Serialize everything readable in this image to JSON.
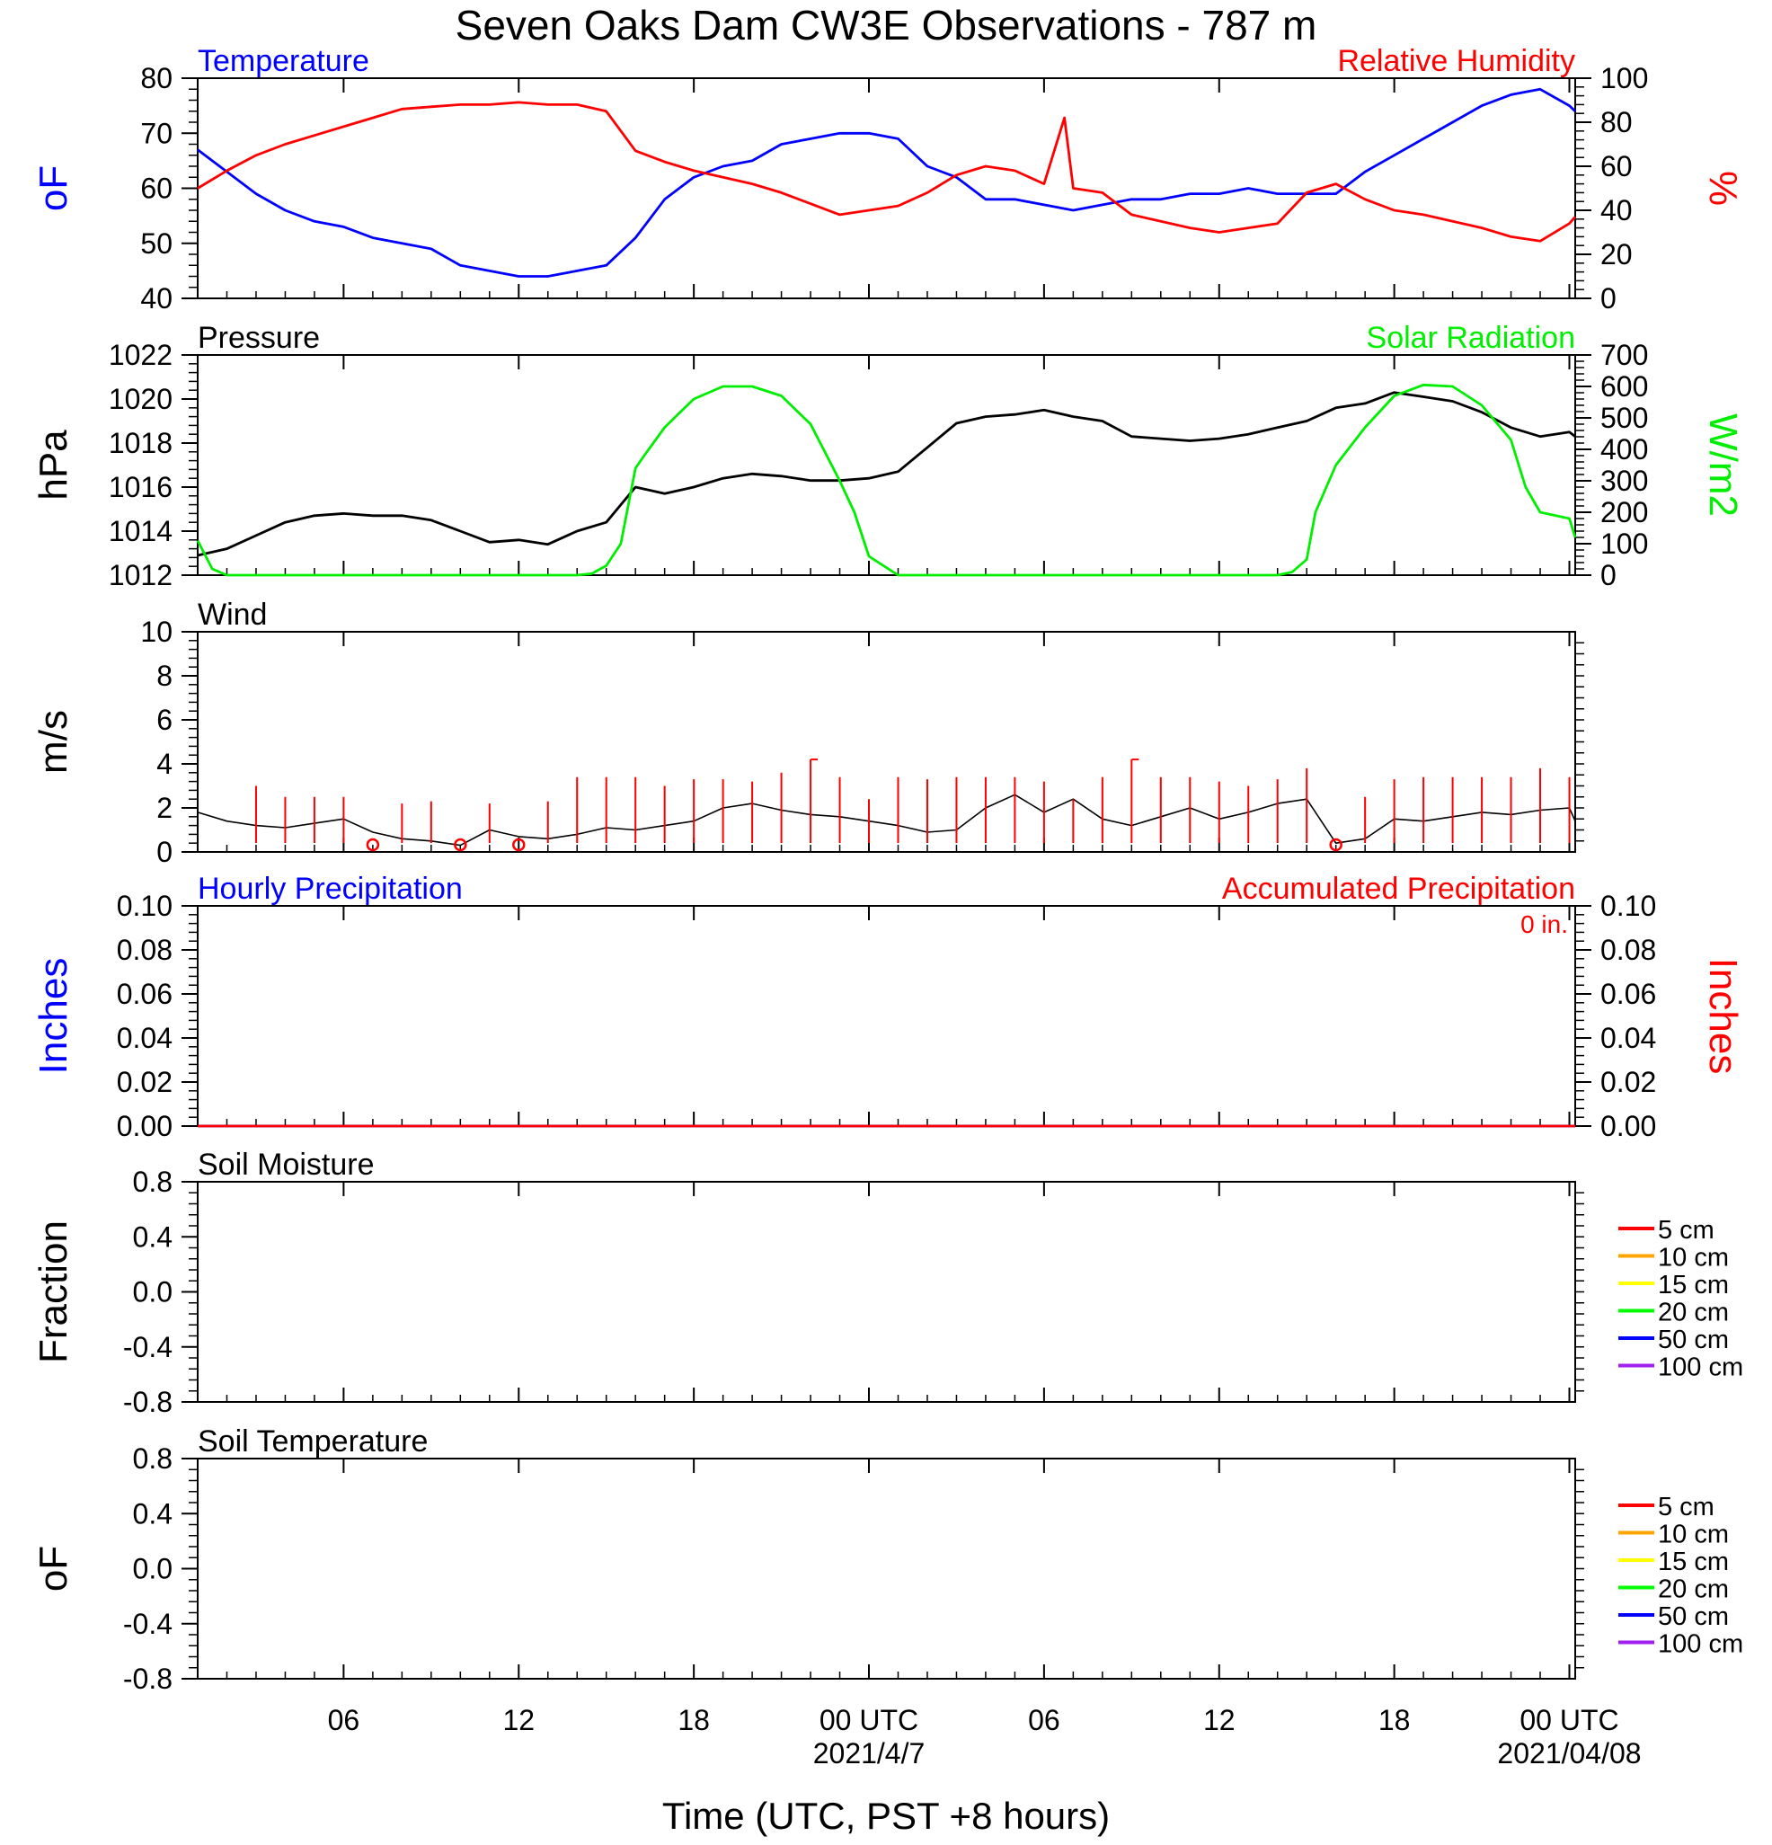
{
  "title": "Seven Oaks Dam CW3E Observations - 787 m",
  "xlabel": "Time (UTC, PST +8 hours)",
  "x_ticks": [
    {
      "hour": 6,
      "label": "06",
      "date": ""
    },
    {
      "hour": 12,
      "label": "12",
      "date": ""
    },
    {
      "hour": 18,
      "label": "18",
      "date": ""
    },
    {
      "hour": 24,
      "label": "00 UTC",
      "date": "2021/4/7"
    },
    {
      "hour": 30,
      "label": "06",
      "date": ""
    },
    {
      "hour": 36,
      "label": "12",
      "date": ""
    },
    {
      "hour": 42,
      "label": "18",
      "date": ""
    },
    {
      "hour": 48,
      "label": "00 UTC",
      "date": "2021/04/08"
    }
  ],
  "x_range_hours": [
    1,
    48.2
  ],
  "colors": {
    "temperature": "#0000ff",
    "humidity": "#ff0000",
    "pressure": "#000000",
    "solar": "#00ee00",
    "wind": "#000000",
    "barb": "#ff0000",
    "hourly": "#0000ff",
    "accum": "#ff0000"
  },
  "chart_data": [
    {
      "type": "line",
      "panel": "temperature-humidity",
      "left_title": "Temperature",
      "right_title": "Relative Humidity",
      "ylabel": "oF",
      "ylabel_right": "%",
      "ylim": [
        40,
        80
      ],
      "yticks": [
        "40",
        "50",
        "60",
        "70",
        "80"
      ],
      "ylim_right": [
        0,
        100
      ],
      "yticks_right": [
        "0",
        "20",
        "40",
        "60",
        "80",
        "100"
      ],
      "series": [
        {
          "name": "Temperature",
          "axis": "left",
          "x": [
            1,
            2,
            3,
            4,
            5,
            6,
            7,
            8,
            9,
            10,
            11,
            12,
            13,
            14,
            15,
            16,
            17,
            18,
            19,
            20,
            21,
            22,
            23,
            24,
            25,
            26,
            27,
            28,
            29,
            30,
            31,
            32,
            33,
            34,
            35,
            36,
            37,
            38,
            39,
            40,
            41,
            42,
            43,
            44,
            45,
            46,
            47,
            48,
            48.2
          ],
          "y": [
            67,
            63,
            59,
            56,
            54,
            53,
            51,
            50,
            49,
            46,
            45,
            44,
            44,
            45,
            46,
            51,
            58,
            62,
            64,
            65,
            68,
            69,
            70,
            70,
            69,
            64,
            62,
            58,
            58,
            57,
            56,
            57,
            58,
            58,
            59,
            59,
            60,
            59,
            59,
            59,
            63,
            66,
            69,
            72,
            75,
            77,
            78,
            75,
            74
          ]
        },
        {
          "name": "Relative Humidity",
          "axis": "right",
          "x": [
            1,
            2,
            3,
            4,
            5,
            6,
            7,
            8,
            9,
            10,
            11,
            12,
            13,
            14,
            15,
            16,
            17,
            18,
            19,
            20,
            21,
            22,
            23,
            24,
            25,
            26,
            27,
            28,
            29,
            30,
            30.7,
            31,
            32,
            33,
            34,
            35,
            36,
            37,
            38,
            39,
            40,
            41,
            42,
            43,
            44,
            45,
            46,
            47,
            48,
            48.2
          ],
          "y": [
            50,
            58,
            65,
            70,
            74,
            78,
            82,
            86,
            87,
            88,
            88,
            89,
            88,
            88,
            85,
            67,
            62,
            58,
            55,
            52,
            48,
            43,
            38,
            40,
            42,
            48,
            56,
            60,
            58,
            52,
            82,
            50,
            48,
            38,
            35,
            32,
            30,
            32,
            34,
            48,
            52,
            45,
            40,
            38,
            35,
            32,
            28,
            26,
            34,
            37
          ]
        }
      ]
    },
    {
      "type": "line",
      "panel": "pressure-solar",
      "left_title": "Pressure",
      "right_title": "Solar Radiation",
      "ylabel": "hPa",
      "ylabel_right": "W/m2",
      "ylim": [
        1012,
        1022
      ],
      "yticks": [
        "1012",
        "1014",
        "1016",
        "1018",
        "1020",
        "1022"
      ],
      "ylim_right": [
        0,
        700
      ],
      "yticks_right": [
        "0",
        "100",
        "200",
        "300",
        "400",
        "500",
        "600",
        "700"
      ],
      "series": [
        {
          "name": "Pressure",
          "axis": "left",
          "x": [
            1,
            2,
            3,
            4,
            5,
            6,
            7,
            8,
            9,
            10,
            11,
            12,
            13,
            14,
            15,
            16,
            17,
            18,
            19,
            20,
            21,
            22,
            23,
            24,
            25,
            26,
            27,
            28,
            29,
            30,
            31,
            32,
            33,
            34,
            35,
            36,
            37,
            38,
            39,
            40,
            41,
            42,
            43,
            44,
            45,
            46,
            47,
            48,
            48.2
          ],
          "y": [
            1012.9,
            1013.2,
            1013.8,
            1014.4,
            1014.7,
            1014.8,
            1014.7,
            1014.7,
            1014.5,
            1014.0,
            1013.5,
            1013.6,
            1013.4,
            1014.0,
            1014.4,
            1016.0,
            1015.7,
            1016.0,
            1016.4,
            1016.6,
            1016.5,
            1016.3,
            1016.3,
            1016.4,
            1016.7,
            1017.8,
            1018.9,
            1019.2,
            1019.3,
            1019.5,
            1019.2,
            1019.0,
            1018.3,
            1018.2,
            1018.1,
            1018.2,
            1018.4,
            1018.7,
            1019.0,
            1019.6,
            1019.8,
            1020.3,
            1020.1,
            1019.9,
            1019.4,
            1018.7,
            1018.3,
            1018.5,
            1018.3
          ]
        },
        {
          "name": "Solar Radiation",
          "axis": "right",
          "x": [
            1,
            1.5,
            2,
            3,
            4,
            5,
            6,
            7,
            8,
            9,
            10,
            11,
            12,
            13,
            14,
            14.5,
            15,
            15.5,
            16,
            16.3,
            17,
            18,
            19,
            20,
            21,
            22,
            23,
            23.5,
            24,
            25,
            26,
            27,
            28,
            29,
            30,
            31,
            32,
            33,
            34,
            35,
            36,
            37,
            38,
            38.5,
            39,
            39.3,
            40,
            41,
            42,
            43,
            44,
            45,
            46,
            46.5,
            47,
            48,
            48.2
          ],
          "y": [
            110,
            20,
            0,
            0,
            0,
            0,
            0,
            0,
            0,
            0,
            0,
            0,
            0,
            0,
            0,
            5,
            30,
            100,
            340,
            380,
            470,
            560,
            600,
            600,
            570,
            480,
            300,
            200,
            60,
            0,
            0,
            0,
            0,
            0,
            0,
            0,
            0,
            0,
            0,
            0,
            0,
            0,
            0,
            10,
            50,
            200,
            350,
            470,
            570,
            605,
            600,
            540,
            430,
            280,
            200,
            180,
            120
          ]
        }
      ]
    },
    {
      "type": "line",
      "panel": "wind",
      "left_title": "Wind",
      "ylabel": "m/s",
      "ylim": [
        0,
        10
      ],
      "yticks": [
        "0",
        "2",
        "4",
        "6",
        "8",
        "10"
      ],
      "series": [
        {
          "name": "Wind speed",
          "x": [
            1,
            2,
            3,
            4,
            5,
            6,
            7,
            8,
            9,
            10,
            11,
            12,
            13,
            14,
            15,
            16,
            17,
            18,
            19,
            20,
            21,
            22,
            23,
            24,
            25,
            26,
            27,
            28,
            29,
            30,
            31,
            32,
            33,
            34,
            35,
            36,
            37,
            38,
            39,
            40,
            41,
            42,
            43,
            44,
            45,
            46,
            47,
            48,
            48.2
          ],
          "y": [
            1.8,
            1.4,
            1.2,
            1.1,
            1.3,
            1.5,
            0.9,
            0.6,
            0.5,
            0.3,
            1.0,
            0.7,
            0.6,
            0.8,
            1.1,
            1.0,
            1.2,
            1.4,
            2.0,
            2.2,
            1.9,
            1.7,
            1.6,
            1.4,
            1.2,
            0.9,
            1.0,
            2.0,
            2.6,
            1.8,
            2.4,
            1.5,
            1.2,
            1.6,
            2.0,
            1.5,
            1.8,
            2.2,
            2.4,
            0.4,
            0.6,
            1.5,
            1.4,
            1.6,
            1.8,
            1.7,
            1.9,
            2.0,
            1.4
          ]
        }
      ],
      "barbs": [
        {
          "hour": 3,
          "speed": 3.0,
          "calm": false
        },
        {
          "hour": 4,
          "speed": 2.5,
          "calm": false
        },
        {
          "hour": 5,
          "speed": 2.5,
          "calm": false
        },
        {
          "hour": 6,
          "speed": 2.5,
          "calm": false
        },
        {
          "hour": 7,
          "speed": 0.5,
          "calm": true
        },
        {
          "hour": 8,
          "speed": 2.2,
          "calm": false
        },
        {
          "hour": 9,
          "speed": 2.3,
          "calm": false
        },
        {
          "hour": 10,
          "speed": 0.3,
          "calm": true
        },
        {
          "hour": 11,
          "speed": 2.2,
          "calm": false
        },
        {
          "hour": 12,
          "speed": 0.6,
          "calm": true
        },
        {
          "hour": 13,
          "speed": 2.3,
          "calm": false
        },
        {
          "hour": 14,
          "speed": 3.4,
          "calm": false
        },
        {
          "hour": 15,
          "speed": 3.4,
          "calm": false
        },
        {
          "hour": 16,
          "speed": 3.4,
          "calm": false
        },
        {
          "hour": 17,
          "speed": 3.0,
          "calm": false
        },
        {
          "hour": 18,
          "speed": 3.3,
          "calm": false
        },
        {
          "hour": 19,
          "speed": 3.3,
          "calm": false
        },
        {
          "hour": 20,
          "speed": 3.2,
          "calm": false
        },
        {
          "hour": 21,
          "speed": 3.6,
          "calm": false
        },
        {
          "hour": 22,
          "speed": 4.2,
          "calm": false
        },
        {
          "hour": 23,
          "speed": 3.4,
          "calm": false
        },
        {
          "hour": 24,
          "speed": 2.4,
          "calm": false
        },
        {
          "hour": 25,
          "speed": 3.4,
          "calm": false
        },
        {
          "hour": 26,
          "speed": 3.3,
          "calm": false
        },
        {
          "hour": 27,
          "speed": 3.4,
          "calm": false
        },
        {
          "hour": 28,
          "speed": 3.4,
          "calm": false
        },
        {
          "hour": 29,
          "speed": 3.4,
          "calm": false
        },
        {
          "hour": 30,
          "speed": 3.2,
          "calm": false
        },
        {
          "hour": 31,
          "speed": 2.4,
          "calm": false
        },
        {
          "hour": 32,
          "speed": 3.4,
          "calm": false
        },
        {
          "hour": 33,
          "speed": 4.2,
          "calm": false
        },
        {
          "hour": 34,
          "speed": 3.4,
          "calm": false
        },
        {
          "hour": 35,
          "speed": 3.4,
          "calm": false
        },
        {
          "hour": 36,
          "speed": 3.2,
          "calm": false
        },
        {
          "hour": 37,
          "speed": 3.0,
          "calm": false
        },
        {
          "hour": 38,
          "speed": 3.3,
          "calm": false
        },
        {
          "hour": 39,
          "speed": 3.8,
          "calm": false
        },
        {
          "hour": 40,
          "speed": 0.3,
          "calm": true
        },
        {
          "hour": 41,
          "speed": 2.5,
          "calm": false
        },
        {
          "hour": 42,
          "speed": 3.3,
          "calm": false
        },
        {
          "hour": 43,
          "speed": 3.4,
          "calm": false
        },
        {
          "hour": 44,
          "speed": 3.4,
          "calm": false
        },
        {
          "hour": 45,
          "speed": 3.4,
          "calm": false
        },
        {
          "hour": 46,
          "speed": 3.4,
          "calm": false
        },
        {
          "hour": 47,
          "speed": 3.8,
          "calm": false
        },
        {
          "hour": 48,
          "speed": 3.4,
          "calm": false
        }
      ]
    },
    {
      "type": "line",
      "panel": "precipitation",
      "left_title": "Hourly Precipitation",
      "right_title": "Accumulated Precipitation",
      "annotation": "0 in.",
      "ylabel": "Inches",
      "ylabel_right": "Inches",
      "ylim": [
        0,
        0.1
      ],
      "yticks": [
        "0.00",
        "0.02",
        "0.04",
        "0.06",
        "0.08",
        "0.10"
      ],
      "ylim_right": [
        0,
        0.1
      ],
      "yticks_right": [
        "0.00",
        "0.02",
        "0.04",
        "0.06",
        "0.08",
        "0.10"
      ],
      "series": [
        {
          "name": "Hourly Precipitation",
          "axis": "left",
          "x": [
            1,
            48.2
          ],
          "y": [
            0,
            0
          ]
        },
        {
          "name": "Accumulated Precipitation",
          "axis": "right",
          "x": [
            1,
            48.2
          ],
          "y": [
            0,
            0
          ]
        }
      ]
    },
    {
      "type": "line",
      "panel": "soil-moisture",
      "left_title": "Soil Moisture",
      "ylabel": "Fraction",
      "ylim": [
        -1,
        1
      ],
      "yticks": [
        "-0.8",
        "-0.4",
        "0.0",
        "0.4",
        "0.8"
      ],
      "legend": [
        {
          "label": "5 cm",
          "color": "#ff0000"
        },
        {
          "label": "10 cm",
          "color": "#ffa500"
        },
        {
          "label": "15 cm",
          "color": "#ffff00"
        },
        {
          "label": "20 cm",
          "color": "#00ff00"
        },
        {
          "label": "50 cm",
          "color": "#0000ff"
        },
        {
          "label": "100 cm",
          "color": "#a020f0"
        }
      ],
      "series": []
    },
    {
      "type": "line",
      "panel": "soil-temperature",
      "left_title": "Soil Temperature",
      "ylabel": "oF",
      "ylim": [
        -1,
        1
      ],
      "yticks": [
        "-0.8",
        "-0.4",
        "0.0",
        "0.4",
        "0.8"
      ],
      "legend": [
        {
          "label": "5 cm",
          "color": "#ff0000"
        },
        {
          "label": "10 cm",
          "color": "#ffa500"
        },
        {
          "label": "15 cm",
          "color": "#ffff00"
        },
        {
          "label": "20 cm",
          "color": "#00ff00"
        },
        {
          "label": "50 cm",
          "color": "#0000ff"
        },
        {
          "label": "100 cm",
          "color": "#a020f0"
        }
      ],
      "series": []
    }
  ]
}
